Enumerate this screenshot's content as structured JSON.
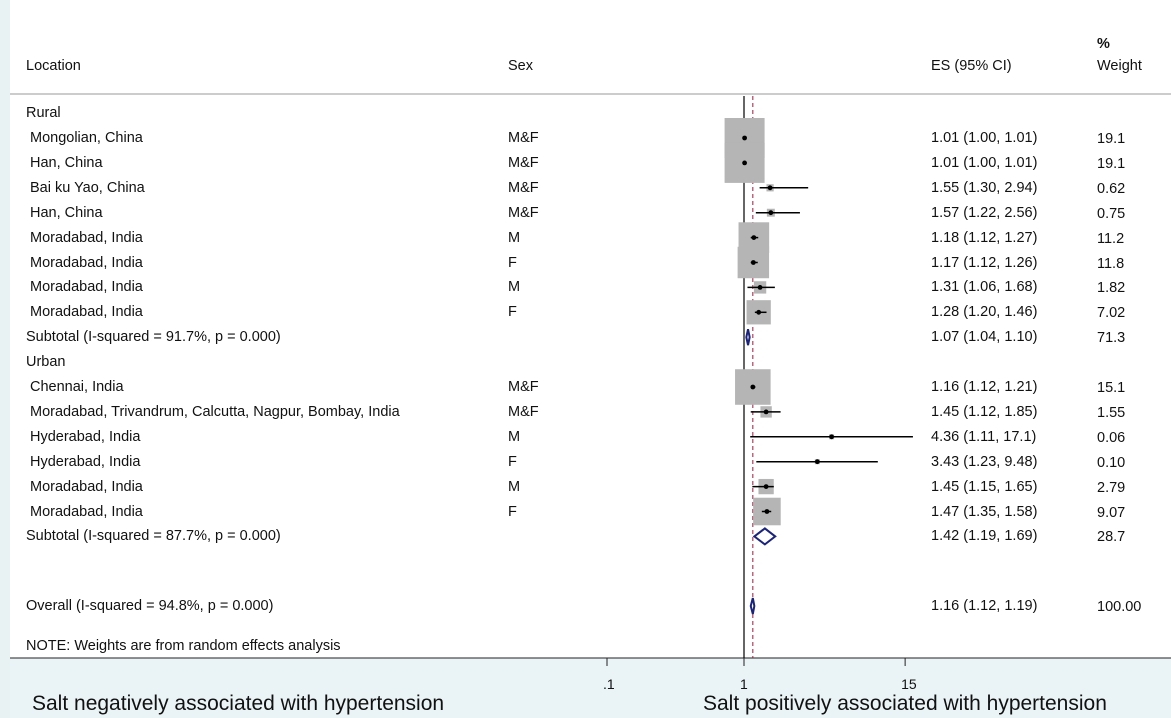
{
  "chart_data": {
    "type": "forest",
    "header": {
      "location": "Location",
      "sex": "Sex",
      "es": "ES (95% CI)",
      "weight_line1": "%",
      "weight_line2": "Weight"
    },
    "groups": [
      {
        "name": "Rural",
        "studies": [
          {
            "location": "Mongolian, China",
            "sex": "M&F",
            "es": 1.01,
            "lo": 1.0,
            "hi": 1.01,
            "es_text": "1.01 (1.00, 1.01)",
            "weight": "19.1"
          },
          {
            "location": "Han, China",
            "sex": "M&F",
            "es": 1.01,
            "lo": 1.0,
            "hi": 1.01,
            "es_text": "1.01 (1.00, 1.01)",
            "weight": "19.1"
          },
          {
            "location": "Bai ku Yao, China",
            "sex": "M&F",
            "es": 1.55,
            "lo": 1.3,
            "hi": 2.94,
            "es_text": "1.55 (1.30, 2.94)",
            "weight": "0.62"
          },
          {
            "location": "Han, China",
            "sex": "M&F",
            "es": 1.57,
            "lo": 1.22,
            "hi": 2.56,
            "es_text": "1.57 (1.22, 2.56)",
            "weight": "0.75"
          },
          {
            "location": "Moradabad, India",
            "sex": "M",
            "es": 1.18,
            "lo": 1.12,
            "hi": 1.27,
            "es_text": "1.18 (1.12, 1.27)",
            "weight": "11.2"
          },
          {
            "location": "Moradabad, India",
            "sex": "F",
            "es": 1.17,
            "lo": 1.12,
            "hi": 1.26,
            "es_text": "1.17 (1.12, 1.26)",
            "weight": "11.8"
          },
          {
            "location": "Moradabad, India",
            "sex": "M",
            "es": 1.31,
            "lo": 1.06,
            "hi": 1.68,
            "es_text": "1.31 (1.06, 1.68)",
            "weight": "1.82"
          },
          {
            "location": "Moradabad, India",
            "sex": "F",
            "es": 1.28,
            "lo": 1.2,
            "hi": 1.46,
            "es_text": "1.28 (1.20, 1.46)",
            "weight": "7.02"
          }
        ],
        "subtotal": {
          "label": "Subtotal  (I-squared = 91.7%, p = 0.000)",
          "es": 1.07,
          "lo": 1.04,
          "hi": 1.1,
          "es_text": "1.07 (1.04, 1.10)",
          "weight": "71.3"
        }
      },
      {
        "name": "Urban",
        "studies": [
          {
            "location": "Chennai, India",
            "sex": "M&F",
            "es": 1.16,
            "lo": 1.12,
            "hi": 1.21,
            "es_text": "1.16 (1.12, 1.21)",
            "weight": "15.1"
          },
          {
            "location": "Moradabad, Trivandrum, Calcutta, Nagpur, Bombay, India",
            "sex": "M&F",
            "es": 1.45,
            "lo": 1.12,
            "hi": 1.85,
            "es_text": "1.45 (1.12, 1.85)",
            "weight": "1.55"
          },
          {
            "location": "Hyderabad, India",
            "sex": "M",
            "es": 4.36,
            "lo": 1.11,
            "hi": 17.1,
            "es_text": "4.36 (1.11, 17.1)",
            "weight": "0.06"
          },
          {
            "location": "Hyderabad, India",
            "sex": "F",
            "es": 3.43,
            "lo": 1.23,
            "hi": 9.48,
            "es_text": "3.43 (1.23, 9.48)",
            "weight": "0.10"
          },
          {
            "location": "Moradabad, India",
            "sex": "M",
            "es": 1.45,
            "lo": 1.15,
            "hi": 1.65,
            "es_text": "1.45 (1.15, 1.65)",
            "weight": "2.79"
          },
          {
            "location": "Moradabad, India",
            "sex": "F",
            "es": 1.47,
            "lo": 1.35,
            "hi": 1.58,
            "es_text": "1.47 (1.35, 1.58)",
            "weight": "9.07"
          }
        ],
        "subtotal": {
          "label": "Subtotal  (I-squared = 87.7%, p = 0.000)",
          "es": 1.42,
          "lo": 1.19,
          "hi": 1.69,
          "es_text": "1.42 (1.19, 1.69)",
          "weight": "28.7"
        }
      }
    ],
    "overall": {
      "label": "Overall  (I-squared = 94.8%, p = 0.000)",
      "es": 1.16,
      "lo": 1.12,
      "hi": 1.19,
      "es_text": "1.16 (1.12, 1.19)",
      "weight": "100.00"
    },
    "note": "NOTE: Weights are from random effects analysis",
    "x_axis": {
      "scale": "log",
      "ticks": [
        {
          "value": 0.1,
          "label": ".1"
        },
        {
          "value": 1,
          "label": "1"
        },
        {
          "value": 15,
          "label": "15"
        }
      ]
    },
    "null_value": 1,
    "footer": {
      "left": "Salt negatively associated with hypertension",
      "right": "Salt positively associated with hypertension"
    },
    "colors": {
      "marker_box": "#b5b5b5",
      "diamond": "#1a237e",
      "overall_line": "#a0193c",
      "band": "#eaf3f5"
    }
  }
}
